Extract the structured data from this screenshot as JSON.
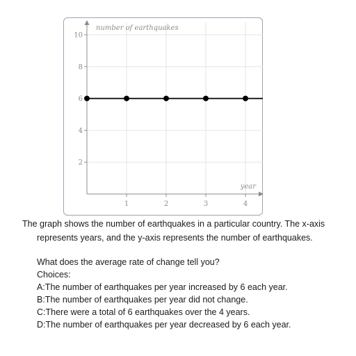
{
  "chart_data": {
    "type": "line",
    "xlabel": "year",
    "ylabel": "number of earthquakes",
    "x_ticks": [
      1,
      2,
      3,
      4
    ],
    "y_ticks": [
      2,
      4,
      6,
      8,
      10
    ],
    "xlim": [
      0,
      4.5
    ],
    "ylim": [
      0,
      10
    ],
    "grid": true,
    "series": [
      {
        "x": [
          0,
          1,
          2,
          3,
          4
        ],
        "y": [
          6,
          6,
          6,
          6,
          6
        ]
      }
    ],
    "line_color": "#000000",
    "grid_color": "#e6e6e6",
    "axis_color": "#8c8c8c"
  },
  "question": {
    "line1": "The graph shows the number of earthquakes in a particular country. The x-axis",
    "line2": "represents years, and the y-axis represents the number of earthquakes.",
    "prompt": "What does the average rate of change tell you?",
    "choices_label": "Choices:",
    "choices": [
      "A:The number of earthquakes per year increased by 6 each year.",
      "B:The number of earthquakes per year did not change.",
      "C:There were a total of 6 earthquakes over the 4 years.",
      "D:The number of earthquakes per year decreased by 6 each year."
    ]
  }
}
